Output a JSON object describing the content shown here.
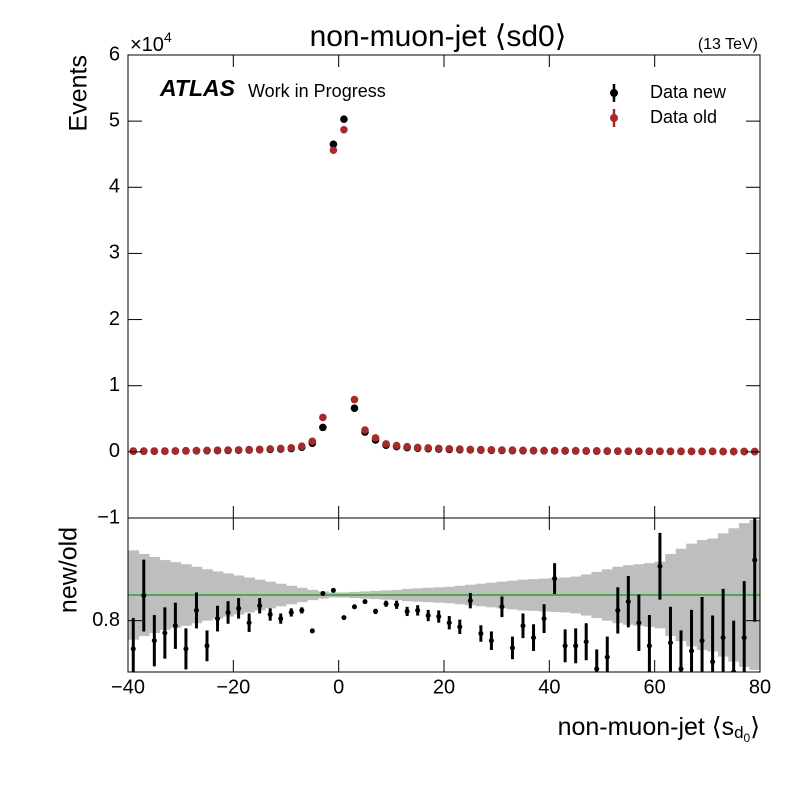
{
  "chart_data": [
    {
      "type": "scatter",
      "title": "non-muon-jet ⟨sd0⟩",
      "energy": "(13 TeV)",
      "experiment": "ATLAS",
      "status": "Work in Progress",
      "ylabel": "Events",
      "y_multiplier": [
        "×10",
        "4"
      ],
      "legend": "upper right",
      "x": [
        -39,
        -37,
        -35,
        -33,
        -31,
        -29,
        -27,
        -25,
        -23,
        -21,
        -19,
        -17,
        -15,
        -13,
        -11,
        -9,
        -7,
        -5,
        -3,
        -1,
        1,
        3,
        5,
        7,
        9,
        11,
        13,
        15,
        17,
        19,
        21,
        23,
        25,
        27,
        29,
        31,
        33,
        35,
        37,
        39,
        41,
        43,
        45,
        47,
        49,
        51,
        53,
        55,
        57,
        59,
        61,
        63,
        65,
        67,
        69,
        71,
        73,
        75,
        77,
        79
      ],
      "series": [
        {
          "name": "Data new",
          "color": "#000000",
          "values": [
            0.01,
            0.01,
            0.01,
            0.01,
            0.012,
            0.014,
            0.016,
            0.018,
            0.02,
            0.022,
            0.025,
            0.028,
            0.032,
            0.036,
            0.042,
            0.05,
            0.07,
            0.13,
            0.37,
            4.65,
            5.03,
            0.66,
            0.3,
            0.18,
            0.1,
            0.08,
            0.065,
            0.055,
            0.048,
            0.042,
            0.037,
            0.033,
            0.03,
            0.027,
            0.024,
            0.022,
            0.02,
            0.018,
            0.017,
            0.016,
            0.015,
            0.014,
            0.013,
            0.012,
            0.011,
            0.01,
            0.01,
            0.009,
            0.009,
            0.008,
            0.008,
            0.007,
            0.007,
            0.006,
            0.006,
            0.006,
            0.005,
            0.005,
            0.005,
            0.004
          ]
        },
        {
          "name": "Data old",
          "color": "#a52a2a",
          "values": [
            0.013,
            0.012,
            0.013,
            0.013,
            0.015,
            0.018,
            0.019,
            0.022,
            0.025,
            0.027,
            0.03,
            0.035,
            0.038,
            0.044,
            0.052,
            0.061,
            0.085,
            0.16,
            0.52,
            4.56,
            4.87,
            0.79,
            0.33,
            0.21,
            0.12,
            0.095,
            0.079,
            0.067,
            0.059,
            0.052,
            0.046,
            0.042,
            0.036,
            0.035,
            0.031,
            0.027,
            0.027,
            0.023,
            0.022,
            0.02,
            0.017,
            0.019,
            0.017,
            0.016,
            0.016,
            0.014,
            0.012,
            0.011,
            0.011,
            0.011,
            0.009,
            0.009,
            0.01,
            0.008,
            0.008,
            0.008,
            0.007,
            0.007,
            0.007,
            0.004
          ]
        }
      ],
      "xlim": [
        -40,
        80
      ],
      "ylim": [
        -1,
        6
      ],
      "yticks": [
        {
          "value": -1,
          "label": "−1"
        },
        0,
        1,
        2,
        3,
        4,
        5,
        6
      ]
    },
    {
      "type": "ratio",
      "ylabel": "new/old",
      "xlabel": [
        "non-muon-jet ⟨s",
        "d",
        "0",
        "⟩"
      ],
      "color": "#000000",
      "band_color": "#bebebe",
      "reference_color": "#2ca02c",
      "reference": 0.85,
      "values": [
        0.745,
        0.849,
        0.761,
        0.776,
        0.79,
        0.745,
        0.82,
        0.751,
        0.804,
        0.816,
        0.824,
        0.796,
        0.829,
        0.812,
        0.804,
        0.816,
        0.82,
        0.78,
        0.853,
        0.859,
        0.806,
        0.827,
        0.837,
        0.818,
        0.833,
        0.831,
        0.818,
        0.82,
        0.81,
        0.808,
        0.796,
        0.788,
        0.839,
        0.775,
        0.761,
        0.827,
        0.747,
        0.79,
        0.767,
        0.804,
        0.882,
        0.751,
        0.751,
        0.759,
        0.706,
        0.729,
        0.82,
        0.837,
        0.796,
        0.751,
        0.906,
        0.757,
        0.706,
        0.741,
        0.761,
        0.72,
        0.767,
        0.7,
        0.767,
        0.918
      ],
      "errors": [
        0.06,
        0.07,
        0.05,
        0.05,
        0.045,
        0.04,
        0.035,
        0.03,
        0.025,
        0.022,
        0.02,
        0.018,
        0.015,
        0.012,
        0.01,
        0.008,
        0.006,
        0.004,
        0.003,
        0.002,
        0.002,
        0.003,
        0.004,
        0.005,
        0.006,
        0.008,
        0.009,
        0.01,
        0.011,
        0.012,
        0.013,
        0.014,
        0.015,
        0.016,
        0.018,
        0.02,
        0.022,
        0.024,
        0.026,
        0.028,
        0.03,
        0.032,
        0.034,
        0.036,
        0.038,
        0.04,
        0.045,
        0.05,
        0.055,
        0.06,
        0.065,
        0.07,
        0.075,
        0.08,
        0.085,
        0.09,
        0.095,
        0.1,
        0.11,
        0.12
      ],
      "band": [
        0.087,
        0.08,
        0.074,
        0.068,
        0.064,
        0.06,
        0.055,
        0.05,
        0.046,
        0.042,
        0.038,
        0.034,
        0.03,
        0.026,
        0.022,
        0.018,
        0.014,
        0.01,
        0.007,
        0.005,
        0.005,
        0.006,
        0.007,
        0.008,
        0.009,
        0.01,
        0.012,
        0.013,
        0.014,
        0.015,
        0.016,
        0.018,
        0.02,
        0.022,
        0.024,
        0.026,
        0.028,
        0.03,
        0.031,
        0.032,
        0.033,
        0.034,
        0.036,
        0.04,
        0.045,
        0.05,
        0.055,
        0.058,
        0.06,
        0.062,
        0.065,
        0.08,
        0.09,
        0.1,
        0.107,
        0.11,
        0.12,
        0.13,
        0.14,
        0.146
      ],
      "xlim": [
        -40,
        80
      ],
      "xticks": [
        {
          "value": -40,
          "label": "−40"
        },
        {
          "value": -20,
          "label": "−20"
        },
        0,
        20,
        40,
        60,
        80
      ],
      "ylim": [
        0.7,
        1.0
      ],
      "yticks": [
        0.8
      ]
    }
  ]
}
